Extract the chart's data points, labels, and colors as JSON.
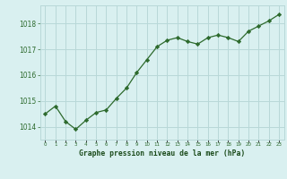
{
  "x": [
    0,
    1,
    2,
    3,
    4,
    5,
    6,
    7,
    8,
    9,
    10,
    11,
    12,
    13,
    14,
    15,
    16,
    17,
    18,
    19,
    20,
    21,
    22,
    23
  ],
  "y": [
    1014.5,
    1014.8,
    1014.2,
    1013.9,
    1014.25,
    1014.55,
    1014.65,
    1015.1,
    1015.5,
    1016.1,
    1016.6,
    1017.1,
    1017.35,
    1017.45,
    1017.3,
    1017.2,
    1017.45,
    1017.55,
    1017.45,
    1017.3,
    1017.7,
    1017.9,
    1018.1,
    1018.35
  ],
  "line_color": "#2d6a2d",
  "marker_color": "#2d6a2d",
  "bg_color": "#d9f0f0",
  "grid_color": "#b8d8d8",
  "title": "Graphe pression niveau de la mer (hPa)",
  "title_color": "#1a4a1a",
  "xlabel_ticks": [
    "0",
    "1",
    "2",
    "3",
    "4",
    "5",
    "6",
    "7",
    "8",
    "9",
    "10",
    "11",
    "12",
    "13",
    "14",
    "15",
    "16",
    "17",
    "18",
    "19",
    "20",
    "21",
    "22",
    "23"
  ],
  "yticks": [
    1014,
    1015,
    1016,
    1017,
    1018
  ],
  "ylim": [
    1013.5,
    1018.7
  ],
  "xlim": [
    -0.5,
    23.5
  ]
}
